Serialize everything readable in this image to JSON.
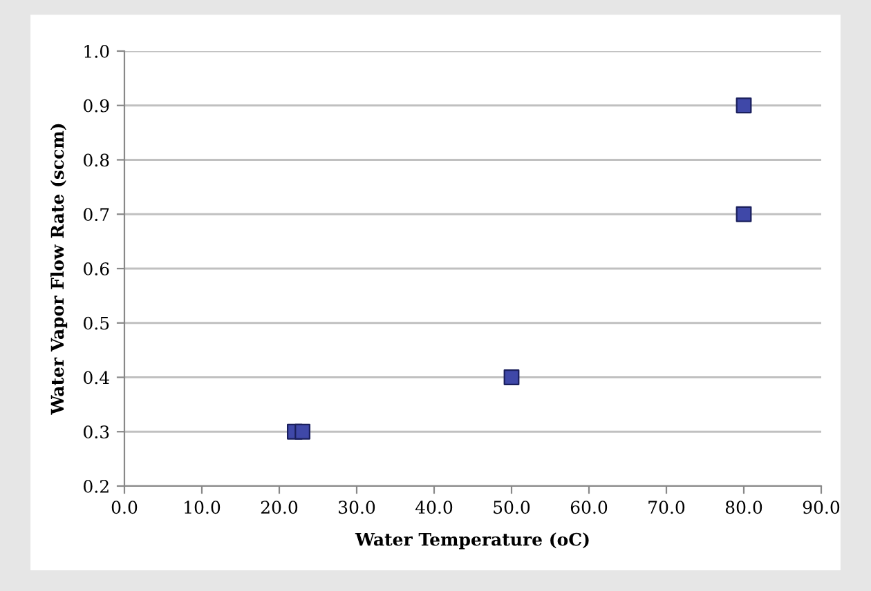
{
  "chart_data": {
    "type": "scatter",
    "xlabel": "Water Temperature (oC)",
    "ylabel": "Water Vapor Flow Rate (sccm)",
    "x": [
      22,
      23,
      50,
      80,
      80
    ],
    "values": [
      0.3,
      0.3,
      0.4,
      0.7,
      0.9
    ],
    "color": "#3f48a8",
    "marker": "square",
    "xlim": [
      0,
      90
    ],
    "ylim": [
      0.2,
      1.0
    ],
    "xticks": [
      {
        "value": 0,
        "label": "0.0"
      },
      {
        "value": 10,
        "label": "10.0"
      },
      {
        "value": 20,
        "label": "20.0"
      },
      {
        "value": 30,
        "label": "30.0"
      },
      {
        "value": 40,
        "label": "40.0"
      },
      {
        "value": 50,
        "label": "50.0"
      },
      {
        "value": 60,
        "label": "60.0"
      },
      {
        "value": 70,
        "label": "70.0"
      },
      {
        "value": 80,
        "label": "80.0"
      },
      {
        "value": 90,
        "label": "90.0"
      }
    ],
    "yticks": [
      0.2,
      0.3,
      0.4,
      0.5,
      0.6,
      0.7,
      0.8,
      0.9,
      {
        "value": 1.0,
        "label": "1.0"
      }
    ],
    "grid": "y",
    "legend": false
  }
}
